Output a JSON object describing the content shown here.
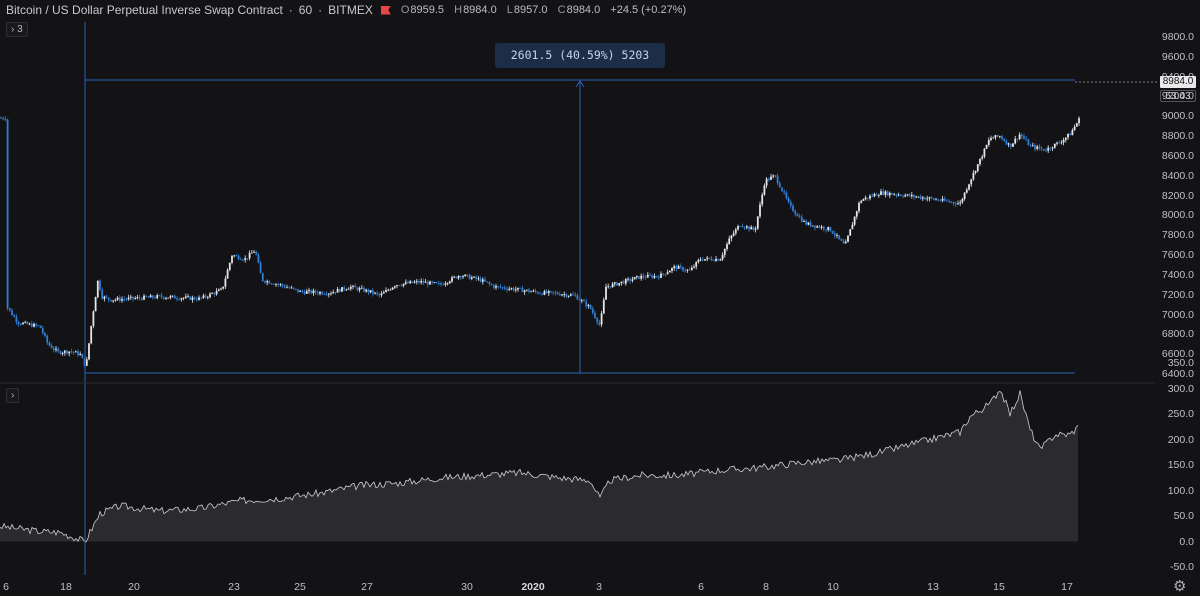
{
  "header": {
    "title": "Bitcoin / US Dollar Perpetual Inverse Swap Contract",
    "interval": "60",
    "exchange": "BITMEX",
    "ohlc": {
      "o_label": "O",
      "o": "8959.5",
      "h_label": "H",
      "h": "8984.0",
      "l_label": "L",
      "l": "8957.0",
      "c_label": "C",
      "c": "8984.0",
      "change": "+24.5 (+0.27%)"
    }
  },
  "indicators_toggle": "3",
  "measure_label": "2601.5 (40.59%) 5203",
  "last_price": "8984.0",
  "countdown": "53:43",
  "colors": {
    "background": "#131316",
    "candle_up": "#e6e6e8",
    "candle_down": "#2f7fd6",
    "measure_line": "#2a62b8",
    "area_line": "#cfcfd2",
    "area_fill": "#2b2b2e"
  },
  "icons": {
    "collapse": "chevron-right-icon",
    "settings": "gear-icon",
    "flag": "flag-icon"
  },
  "chart_data": [
    {
      "type": "candlestick",
      "title": "Bitcoin / US Dollar Perpetual Inverse Swap Contract",
      "ylim": [
        6400,
        9900
      ],
      "yticks": [
        "9800.0",
        "9600.0",
        "9400.0",
        "9200.0",
        "9000.0",
        "8800.0",
        "8600.0",
        "8400.0",
        "8200.0",
        "8000.0",
        "7800.0",
        "7600.0",
        "7400.0",
        "7200.0",
        "7000.0",
        "6800.0",
        "6600.0",
        "6400.0"
      ],
      "xticks": [
        "6",
        "18",
        "20",
        "23",
        "25",
        "27",
        "30",
        "2020",
        "3",
        "6",
        "8",
        "10",
        "13",
        "15",
        "17"
      ],
      "series_close_path": [
        [
          6,
          7090
        ],
        [
          18,
          6920
        ],
        [
          28,
          6900
        ],
        [
          40,
          6880
        ],
        [
          48,
          6700
        ],
        [
          58,
          6620
        ],
        [
          70,
          6630
        ],
        [
          80,
          6600
        ],
        [
          86,
          6470
        ],
        [
          92,
          6950
        ],
        [
          98,
          7350
        ],
        [
          102,
          7180
        ],
        [
          110,
          7150
        ],
        [
          130,
          7160
        ],
        [
          160,
          7180
        ],
        [
          200,
          7160
        ],
        [
          222,
          7250
        ],
        [
          232,
          7600
        ],
        [
          245,
          7560
        ],
        [
          255,
          7650
        ],
        [
          262,
          7350
        ],
        [
          280,
          7300
        ],
        [
          300,
          7230
        ],
        [
          330,
          7220
        ],
        [
          350,
          7280
        ],
        [
          370,
          7230
        ],
        [
          380,
          7190
        ],
        [
          395,
          7300
        ],
        [
          420,
          7330
        ],
        [
          440,
          7300
        ],
        [
          460,
          7400
        ],
        [
          480,
          7350
        ],
        [
          495,
          7280
        ],
        [
          520,
          7250
        ],
        [
          540,
          7220
        ],
        [
          560,
          7210
        ],
        [
          575,
          7190
        ],
        [
          590,
          7070
        ],
        [
          600,
          6890
        ],
        [
          606,
          7280
        ],
        [
          620,
          7320
        ],
        [
          640,
          7380
        ],
        [
          660,
          7390
        ],
        [
          675,
          7480
        ],
        [
          690,
          7440
        ],
        [
          700,
          7560
        ],
        [
          720,
          7560
        ],
        [
          730,
          7770
        ],
        [
          740,
          7910
        ],
        [
          755,
          7850
        ],
        [
          765,
          8350
        ],
        [
          775,
          8400
        ],
        [
          790,
          8090
        ],
        [
          805,
          7920
        ],
        [
          830,
          7860
        ],
        [
          845,
          7690
        ],
        [
          860,
          8150
        ],
        [
          880,
          8230
        ],
        [
          900,
          8210
        ],
        [
          930,
          8170
        ],
        [
          960,
          8120
        ],
        [
          970,
          8350
        ],
        [
          980,
          8560
        ],
        [
          990,
          8780
        ],
        [
          1000,
          8800
        ],
        [
          1010,
          8700
        ],
        [
          1020,
          8820
        ],
        [
          1030,
          8700
        ],
        [
          1045,
          8660
        ],
        [
          1060,
          8740
        ],
        [
          1070,
          8820
        ],
        [
          1080,
          8984
        ]
      ]
    },
    {
      "type": "area",
      "ylim": [
        -50,
        350
      ],
      "yticks": [
        "350.0",
        "300.0",
        "250.0",
        "200.0",
        "150.0",
        "100.0",
        "50.0",
        "0.0",
        "-50.0"
      ],
      "values_path": [
        [
          0,
          30
        ],
        [
          20,
          25
        ],
        [
          40,
          20
        ],
        [
          60,
          18
        ],
        [
          85,
          0
        ],
        [
          100,
          55
        ],
        [
          120,
          70
        ],
        [
          160,
          60
        ],
        [
          200,
          65
        ],
        [
          240,
          80
        ],
        [
          280,
          85
        ],
        [
          320,
          95
        ],
        [
          360,
          110
        ],
        [
          400,
          115
        ],
        [
          440,
          125
        ],
        [
          480,
          130
        ],
        [
          520,
          135
        ],
        [
          560,
          125
        ],
        [
          590,
          120
        ],
        [
          600,
          85
        ],
        [
          610,
          120
        ],
        [
          640,
          130
        ],
        [
          680,
          130
        ],
        [
          720,
          140
        ],
        [
          760,
          145
        ],
        [
          800,
          155
        ],
        [
          840,
          160
        ],
        [
          880,
          175
        ],
        [
          920,
          195
        ],
        [
          960,
          215
        ],
        [
          970,
          245
        ],
        [
          990,
          270
        ],
        [
          1000,
          300
        ],
        [
          1010,
          250
        ],
        [
          1020,
          290
        ],
        [
          1030,
          220
        ],
        [
          1040,
          180
        ],
        [
          1055,
          210
        ],
        [
          1070,
          210
        ],
        [
          1078,
          225
        ]
      ]
    }
  ]
}
